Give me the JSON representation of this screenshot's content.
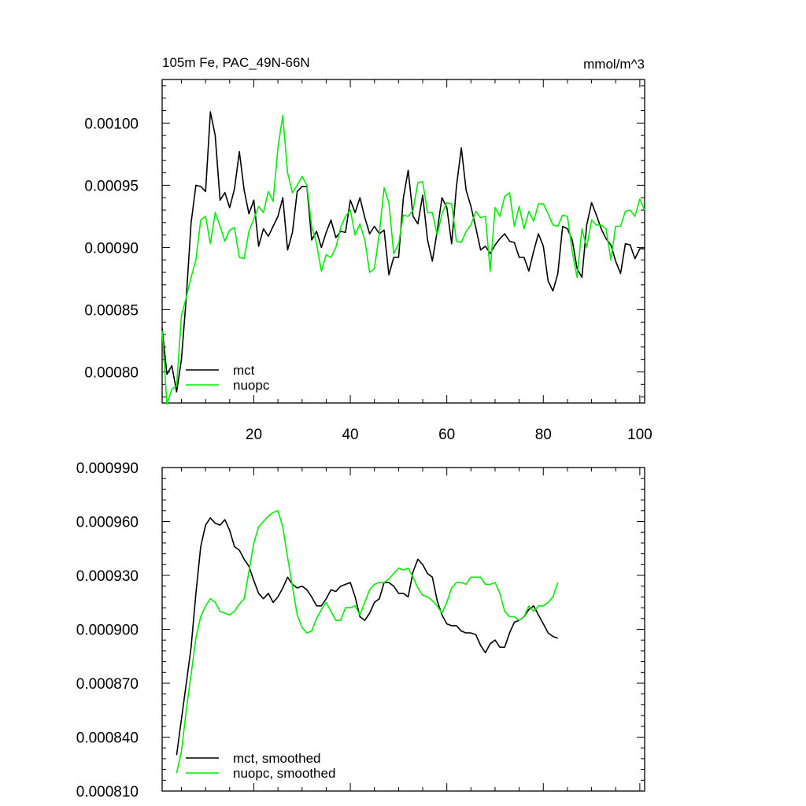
{
  "chart_data": [
    {
      "type": "line",
      "title": "105m Fe, PAC_49N-66N",
      "units": "mmol/m^3",
      "xlabel": "",
      "ylabel": "",
      "xlim": [
        1,
        101
      ],
      "ylim": [
        0.000775,
        0.001035
      ],
      "xticks": [
        20,
        40,
        60,
        80,
        100
      ],
      "xtick_labels": [
        "20",
        "40",
        "60",
        "80",
        "100"
      ],
      "yticks": [
        0.0008,
        0.00085,
        0.0009,
        0.00095,
        0.001
      ],
      "ytick_labels": [
        "0.00080",
        "0.00085",
        "0.00090",
        "0.00095",
        "0.00100"
      ],
      "legend": {
        "position": "bottom-left",
        "entries": [
          "mct",
          "nuopc"
        ]
      },
      "x_start": 1,
      "series": [
        {
          "name": "mct",
          "color": "#000000",
          "values": [
            0.000835,
            0.000798,
            0.000805,
            0.000784,
            0.00081,
            0.00086,
            0.00092,
            0.00095,
            0.000949,
            0.000945,
            0.001009,
            0.00099,
            0.000938,
            0.000944,
            0.000932,
            0.000947,
            0.000977,
            0.000946,
            0.000927,
            0.000938,
            0.000901,
            0.000915,
            0.000909,
            0.000917,
            0.000925,
            0.00094,
            0.000898,
            0.000912,
            0.000945,
            0.000949,
            0.000949,
            0.000906,
            0.000913,
            0.0009,
            0.000912,
            0.000922,
            0.000908,
            0.000913,
            0.000912,
            0.000938,
            0.000928,
            0.00094,
            0.000924,
            0.000911,
            0.000917,
            0.000911,
            0.000914,
            0.000878,
            0.000892,
            0.000892,
            0.00094,
            0.000962,
            0.000925,
            0.000919,
            0.000942,
            0.000906,
            0.000889,
            0.000913,
            0.00094,
            0.000932,
            0.000903,
            0.000949,
            0.00098,
            0.000946,
            0.000933,
            0.000916,
            0.000898,
            0.000901,
            0.000895,
            0.000902,
            0.000907,
            0.000911,
            0.000905,
            0.000904,
            0.000892,
            0.000892,
            0.000881,
            0.000897,
            0.000911,
            0.000901,
            0.000873,
            0.000865,
            0.000879,
            0.000917,
            0.000915,
            0.000906,
            0.000883,
            0.000876,
            0.000918,
            0.000936,
            0.000926,
            0.000915,
            0.000907,
            0.000902,
            0.000889,
            0.000879,
            0.000903,
            0.000902,
            0.000891,
            0.000899,
            0.000899
          ]
        },
        {
          "name": "nuopc",
          "color": "#00ee00",
          "values": [
            0.000833,
            0.000774,
            0.000786,
            0.000789,
            0.000845,
            0.00086,
            0.000876,
            0.00089,
            0.000922,
            0.000925,
            0.000903,
            0.000928,
            0.000917,
            0.000905,
            0.000914,
            0.000916,
            0.000892,
            0.000891,
            0.000913,
            0.000923,
            0.000933,
            0.000928,
            0.000945,
            0.000937,
            0.00098,
            0.001006,
            0.00096,
            0.000944,
            0.00095,
            0.000957,
            0.00095,
            0.000917,
            0.000903,
            0.000881,
            0.000894,
            0.000892,
            0.0009,
            0.000916,
            0.000925,
            0.00093,
            0.00091,
            0.000919,
            0.000906,
            0.00088,
            0.000883,
            0.000911,
            0.000948,
            0.000936,
            0.000895,
            0.000903,
            0.000926,
            0.000925,
            0.00093,
            0.000952,
            0.000953,
            0.000928,
            0.000928,
            0.00091,
            0.000927,
            0.000936,
            0.000935,
            0.000905,
            0.000904,
            0.000913,
            0.000918,
            0.000929,
            0.000924,
            0.000925,
            0.000881,
            0.000932,
            0.000925,
            0.000941,
            0.000944,
            0.000917,
            0.000933,
            0.000915,
            0.000929,
            0.000921,
            0.000935,
            0.000935,
            0.000927,
            0.000918,
            0.000917,
            0.000926,
            0.000925,
            0.000897,
            0.000876,
            0.000915,
            0.0009,
            0.000922,
            0.000918,
            0.000918,
            0.000915,
            0.00089,
            0.000917,
            0.000917,
            0.000929,
            0.00093,
            0.000925,
            0.000939,
            0.00093
          ]
        }
      ]
    },
    {
      "type": "line",
      "title": "",
      "xlabel": "",
      "ylabel": "",
      "xlim": [
        1,
        101
      ],
      "ylim": [
        0.00081,
        0.00099
      ],
      "xticks": [
        20,
        40,
        60,
        80,
        100
      ],
      "yticks": [
        0.00081,
        0.00084,
        0.00087,
        0.0009,
        0.00093,
        0.00096,
        0.00099
      ],
      "ytick_labels": [
        "0.000810",
        "0.000840",
        "0.000870",
        "0.000900",
        "0.000930",
        "0.000960",
        "0.000990"
      ],
      "legend": {
        "position": "bottom-left",
        "entries": [
          "mct, smoothed",
          "nuopc, smoothed"
        ]
      },
      "x_start": 4,
      "series": [
        {
          "name": "mct, smoothed",
          "color": "#000000",
          "values": [
            0.00083,
            0.00085,
            0.00087,
            0.00089,
            0.00092,
            0.000946,
            0.000958,
            0.000962,
            0.000959,
            0.000958,
            0.000961,
            0.000955,
            0.000946,
            0.000944,
            0.000939,
            0.000935,
            0.000927,
            0.00092,
            0.000917,
            0.00092,
            0.000915,
            0.000918,
            0.000923,
            0.000929,
            0.000925,
            0.000923,
            0.000924,
            0.000922,
            0.000918,
            0.000913,
            0.000913,
            0.000917,
            0.000922,
            0.000921,
            0.000924,
            0.000925,
            0.000926,
            0.000918,
            0.000907,
            0.000905,
            0.000909,
            0.000915,
            0.000917,
            0.000926,
            0.000926,
            0.000924,
            0.00092,
            0.00092,
            0.000918,
            0.000932,
            0.000939,
            0.000936,
            0.000931,
            0.000929,
            0.000916,
            0.000908,
            0.000903,
            0.000902,
            0.000902,
            0.000899,
            0.000898,
            0.000898,
            0.000897,
            0.000891,
            0.000887,
            0.000892,
            0.000894,
            0.00089,
            0.00089,
            0.000898,
            0.000904,
            0.000905,
            0.000907,
            0.000911,
            0.000913,
            0.000908,
            0.000903,
            0.000898,
            0.000896,
            0.000895
          ]
        },
        {
          "name": "nuopc, smoothed",
          "color": "#00ee00",
          "values": [
            0.00082,
            0.000832,
            0.000855,
            0.000875,
            0.000895,
            0.000907,
            0.000913,
            0.000917,
            0.000915,
            0.00091,
            0.000909,
            0.000908,
            0.00091,
            0.000914,
            0.000917,
            0.000932,
            0.000948,
            0.000957,
            0.00096,
            0.000963,
            0.000965,
            0.000966,
            0.000957,
            0.00094,
            0.000924,
            0.000908,
            0.000901,
            0.000898,
            0.000899,
            0.000906,
            0.000911,
            0.000915,
            0.00091,
            0.000905,
            0.000905,
            0.000912,
            0.000912,
            0.000913,
            0.000908,
            0.000915,
            0.000922,
            0.000925,
            0.000926,
            0.000926,
            0.000928,
            0.000931,
            0.000934,
            0.000933,
            0.000934,
            0.000929,
            0.000923,
            0.000919,
            0.000918,
            0.000916,
            0.000913,
            0.000909,
            0.000915,
            0.000923,
            0.000926,
            0.000926,
            0.000925,
            0.000929,
            0.000929,
            0.000929,
            0.000925,
            0.000925,
            0.000926,
            0.00092,
            0.00091,
            0.000907,
            0.000907,
            0.000905,
            0.000907,
            0.000913,
            0.00091,
            0.000913,
            0.000913,
            0.000915,
            0.000918,
            0.000926
          ]
        }
      ]
    }
  ]
}
